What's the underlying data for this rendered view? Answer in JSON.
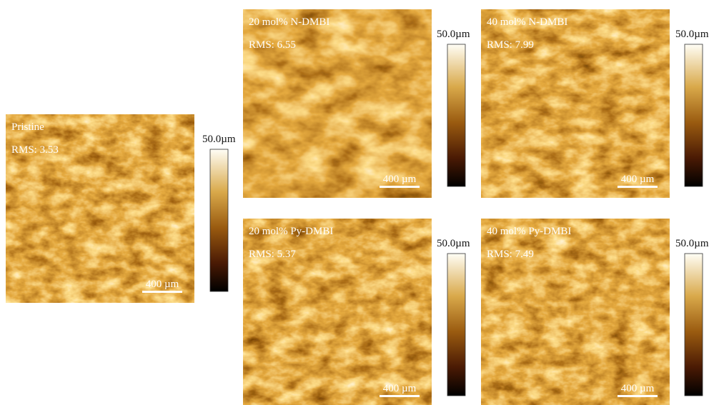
{
  "panels": [
    {
      "title": "Pristine",
      "rms": "RMS: 3.53",
      "scale_bar": "400 µm",
      "colorbar_max": "50.0µm"
    },
    {
      "title": "20 mol% N-DMBI",
      "rms": "RMS: 6.55",
      "scale_bar": "400 µm",
      "colorbar_max": "50.0µm"
    },
    {
      "title": "40 mol% N-DMBI",
      "rms": "RMS: 7.99",
      "scale_bar": "400 µm",
      "colorbar_max": "50.0µm"
    },
    {
      "title": "20 mol% Py-DMBI",
      "rms": "RMS: 5.37",
      "scale_bar": "400 µm",
      "colorbar_max": "50.0µm"
    },
    {
      "title": "40 mol% Py-DMBI",
      "rms": "RMS: 7.49",
      "scale_bar": "400 µm",
      "colorbar_max": "50.0µm"
    }
  ]
}
